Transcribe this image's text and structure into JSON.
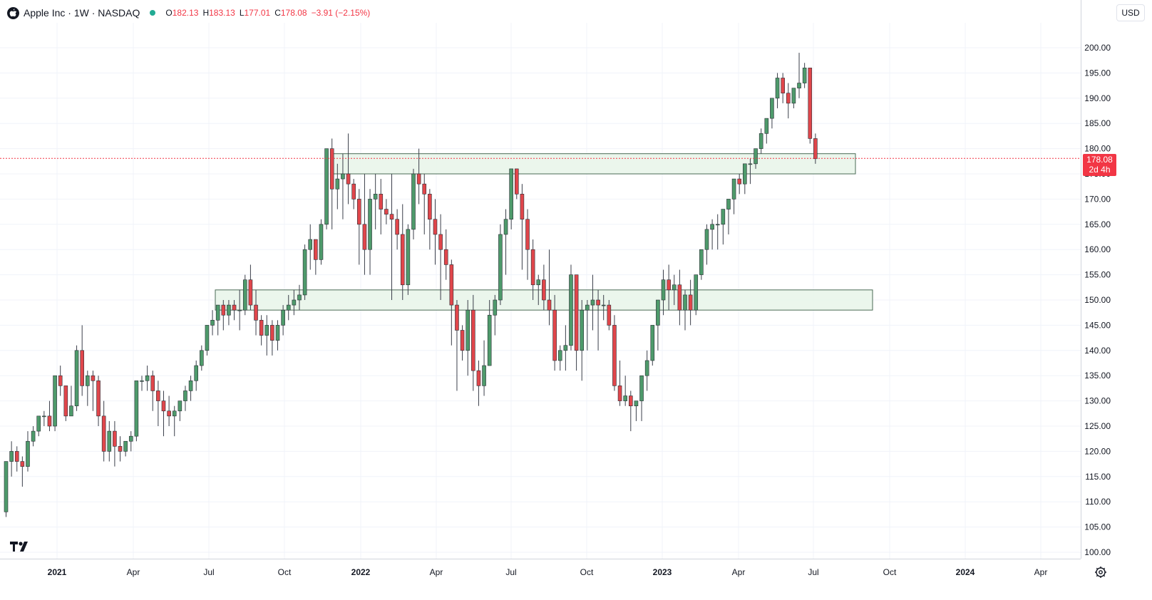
{
  "header": {
    "symbol": "Apple Inc · 1W · NASDAQ",
    "open_label": "O",
    "open": "182.13",
    "high_label": "H",
    "high": "183.13",
    "low_label": "L",
    "low": "177.01",
    "close_label": "C",
    "close": "178.08",
    "change": "−3.91 (−2.15%)"
  },
  "currency": "USD",
  "last_price": {
    "value": "178.08",
    "countdown": "2d 4h"
  },
  "colors": {
    "up": "#4e9a6b",
    "down": "#e0464b",
    "zone_fill": "#e8f5e9",
    "zone_stroke": "#4a6b55",
    "last_line": "#f23645"
  },
  "icons": {
    "logo": "apple-icon",
    "status": "market-status-dot",
    "brand": "tradingview-logo",
    "settings": "gear-icon"
  },
  "chart_data": {
    "type": "candlestick",
    "interval": "1W",
    "y_axis": {
      "min": 100,
      "max": 205,
      "ticks": [
        "100.00",
        "105.00",
        "110.00",
        "115.00",
        "120.00",
        "125.00",
        "130.00",
        "135.00",
        "140.00",
        "145.00",
        "150.00",
        "155.00",
        "160.00",
        "165.00",
        "170.00",
        "175.00",
        "180.00",
        "185.00",
        "190.00",
        "195.00",
        "200.00"
      ]
    },
    "x_axis": {
      "ticks": [
        "2021",
        "Apr",
        "Jul",
        "Oct",
        "2022",
        "Apr",
        "Jul",
        "Oct",
        "2023",
        "Apr",
        "Jul",
        "Oct",
        "2024",
        "Apr"
      ]
    },
    "zones": [
      {
        "low": 148,
        "high": 152,
        "from_week": 42,
        "to_week": 185
      },
      {
        "low": 175,
        "high": 179,
        "from_week": 57,
        "to_week": 181
      }
    ],
    "candles_ohlc": [
      [
        108,
        118,
        107,
        118
      ],
      [
        118,
        122,
        115,
        120
      ],
      [
        120,
        121,
        116,
        118
      ],
      [
        118,
        119,
        113,
        117
      ],
      [
        117,
        124,
        116,
        122
      ],
      [
        122,
        125,
        121,
        124
      ],
      [
        124,
        126,
        123,
        127
      ],
      [
        127,
        128,
        125,
        127
      ],
      [
        127,
        130,
        124,
        125
      ],
      [
        125,
        135,
        124,
        135
      ],
      [
        135,
        137,
        131,
        133
      ],
      [
        133,
        133,
        126,
        127
      ],
      [
        127,
        133,
        127,
        129
      ],
      [
        129,
        141,
        128,
        140
      ],
      [
        140,
        145,
        131,
        133
      ],
      [
        133,
        136,
        129,
        135
      ],
      [
        135,
        136,
        128,
        134
      ],
      [
        134,
        135,
        125,
        127
      ],
      [
        127,
        130,
        118,
        120
      ],
      [
        120,
        126,
        118,
        124
      ],
      [
        124,
        126,
        117,
        121
      ],
      [
        121,
        123,
        118,
        120
      ],
      [
        120,
        122,
        119,
        122
      ],
      [
        122,
        124,
        120,
        123
      ],
      [
        123,
        134,
        122,
        134
      ],
      [
        134,
        135,
        132,
        134
      ],
      [
        134,
        137,
        132,
        135
      ],
      [
        135,
        136,
        128,
        132
      ],
      [
        132,
        134,
        125,
        130
      ],
      [
        130,
        132,
        123,
        128
      ],
      [
        128,
        131,
        125,
        127
      ],
      [
        127,
        129,
        123,
        128
      ],
      [
        128,
        130,
        126,
        130
      ],
      [
        130,
        133,
        128,
        132
      ],
      [
        132,
        135,
        130,
        134
      ],
      [
        134,
        138,
        132,
        137
      ],
      [
        137,
        141,
        136,
        140
      ],
      [
        140,
        145,
        139,
        145
      ],
      [
        145,
        148,
        143,
        146
      ],
      [
        146,
        149,
        143,
        149
      ],
      [
        149,
        150,
        144,
        147
      ],
      [
        147,
        150,
        145,
        149
      ],
      [
        149,
        150,
        146,
        148
      ],
      [
        148,
        152,
        144,
        148
      ],
      [
        148,
        155,
        147,
        154
      ],
      [
        154,
        157,
        148,
        149
      ],
      [
        149,
        152,
        143,
        146
      ],
      [
        146,
        147,
        141,
        143
      ],
      [
        143,
        147,
        139,
        145
      ],
      [
        145,
        146,
        139,
        142
      ],
      [
        142,
        146,
        140,
        145
      ],
      [
        145,
        149,
        143,
        148
      ],
      [
        148,
        151,
        146,
        149
      ],
      [
        149,
        152,
        147,
        150
      ],
      [
        150,
        153,
        148,
        151
      ],
      [
        151,
        161,
        150,
        160
      ],
      [
        160,
        165,
        156,
        162
      ],
      [
        162,
        162,
        155,
        158
      ],
      [
        158,
        166,
        157,
        165
      ],
      [
        165,
        179,
        164,
        180
      ],
      [
        180,
        182,
        164,
        172
      ],
      [
        172,
        177,
        168,
        174
      ],
      [
        174,
        179,
        166,
        175
      ],
      [
        175,
        183,
        169,
        173
      ],
      [
        173,
        174,
        168,
        170
      ],
      [
        170,
        172,
        157,
        165
      ],
      [
        165,
        175,
        155,
        160
      ],
      [
        160,
        172,
        155,
        170
      ],
      [
        170,
        175,
        164,
        171
      ],
      [
        171,
        174,
        163,
        168
      ],
      [
        168,
        170,
        165,
        167
      ],
      [
        167,
        175,
        150,
        166
      ],
      [
        166,
        168,
        160,
        163
      ],
      [
        163,
        169,
        150,
        153
      ],
      [
        153,
        165,
        151,
        164
      ],
      [
        164,
        176,
        162,
        175
      ],
      [
        175,
        180,
        169,
        173
      ],
      [
        173,
        175,
        163,
        171
      ],
      [
        171,
        172,
        160,
        166
      ],
      [
        166,
        170,
        157,
        163
      ],
      [
        163,
        167,
        150,
        160
      ],
      [
        160,
        164,
        154,
        157
      ],
      [
        157,
        158,
        141,
        149
      ],
      [
        149,
        150,
        132,
        144
      ],
      [
        144,
        145,
        138,
        140
      ],
      [
        140,
        150,
        135,
        148
      ],
      [
        148,
        151,
        132,
        136
      ],
      [
        136,
        138,
        129,
        133
      ],
      [
        133,
        142,
        131,
        137
      ],
      [
        137,
        150,
        137,
        147
      ],
      [
        147,
        151,
        143,
        150
      ],
      [
        150,
        165,
        149,
        163
      ],
      [
        163,
        168,
        155,
        166
      ],
      [
        166,
        176,
        164,
        176
      ],
      [
        176,
        176,
        170,
        171
      ],
      [
        171,
        173,
        156,
        166
      ],
      [
        166,
        168,
        154,
        160
      ],
      [
        160,
        162,
        150,
        153
      ],
      [
        153,
        155,
        149,
        154
      ],
      [
        154,
        157,
        148,
        150
      ],
      [
        150,
        160,
        145,
        148
      ],
      [
        148,
        151,
        136,
        138
      ],
      [
        138,
        141,
        136,
        140
      ],
      [
        140,
        145,
        136,
        141
      ],
      [
        141,
        157,
        140,
        155
      ],
      [
        155,
        155,
        136,
        140
      ],
      [
        140,
        150,
        134,
        148
      ],
      [
        148,
        150,
        140,
        149
      ],
      [
        149,
        155,
        144,
        150
      ],
      [
        150,
        152,
        140,
        149
      ],
      [
        149,
        151,
        146,
        149
      ],
      [
        149,
        150,
        144,
        145
      ],
      [
        145,
        147,
        132,
        133
      ],
      [
        133,
        138,
        129,
        130
      ],
      [
        130,
        135,
        129,
        131
      ],
      [
        131,
        132,
        124,
        129
      ],
      [
        129,
        130,
        126,
        130
      ],
      [
        130,
        132,
        126,
        135
      ],
      [
        135,
        140,
        132,
        138
      ],
      [
        138,
        145,
        137,
        145
      ],
      [
        145,
        148,
        140,
        150
      ],
      [
        150,
        156,
        147,
        154
      ],
      [
        154,
        157,
        148,
        152
      ],
      [
        152,
        155,
        149,
        153
      ],
      [
        153,
        156,
        145,
        148
      ],
      [
        148,
        152,
        144,
        151
      ],
      [
        151,
        154,
        145,
        148
      ],
      [
        148,
        155,
        147,
        155
      ],
      [
        155,
        160,
        154,
        160
      ],
      [
        160,
        165,
        157,
        164
      ],
      [
        164,
        166,
        160,
        165
      ],
      [
        165,
        167,
        160,
        165
      ],
      [
        165,
        166,
        161,
        168
      ],
      [
        168,
        169,
        163,
        170
      ],
      [
        170,
        173,
        167,
        174
      ],
      [
        174,
        175,
        171,
        173
      ],
      [
        173,
        176,
        171,
        177
      ],
      [
        177,
        178,
        173,
        177
      ],
      [
        177,
        180,
        176,
        180
      ],
      [
        180,
        184,
        179,
        183
      ],
      [
        183,
        185,
        181,
        186
      ],
      [
        186,
        189,
        184,
        190
      ],
      [
        190,
        195,
        188,
        194
      ],
      [
        194,
        195,
        189,
        191
      ],
      [
        191,
        193,
        186,
        189
      ],
      [
        189,
        192,
        188,
        192
      ],
      [
        192,
        199,
        190,
        193
      ],
      [
        193,
        197,
        192,
        196
      ],
      [
        196,
        196,
        181,
        182
      ],
      [
        182,
        183,
        177,
        178
      ]
    ]
  }
}
